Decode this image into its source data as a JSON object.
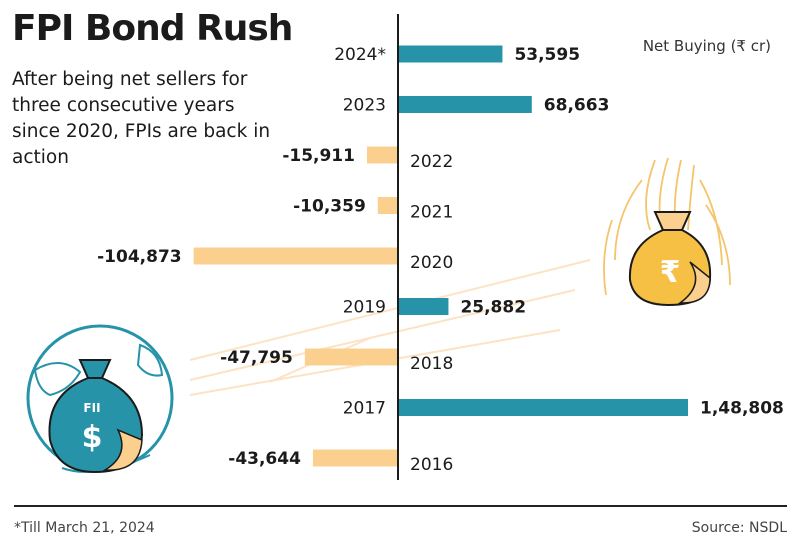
{
  "header": {
    "title": "FPI Bond Rush",
    "subtitle": "After being net sellers for three consecutive years since 2020, FPIs are back in action",
    "units": "Net Buying (₹ cr)"
  },
  "footer": {
    "footnote": "*Till March 21, 2024",
    "source": "Source: NSDL"
  },
  "colors": {
    "positive": "#2793a8",
    "negative": "#fbd08f",
    "axis": "#1b1b1b"
  },
  "illustration": {
    "money_bag_label": "FII",
    "money_bag_symbol": "$",
    "rupee_bag_symbol": "₹"
  },
  "chart_data": {
    "type": "bar",
    "orientation": "horizontal",
    "categories": [
      "2024*",
      "2023",
      "2022",
      "2021",
      "2020",
      "2019",
      "2018",
      "2017",
      "2016"
    ],
    "values": [
      53595,
      68663,
      -15911,
      -10359,
      -104873,
      25882,
      -47795,
      148808,
      -43644
    ],
    "value_labels": [
      "53,595",
      "68,663",
      "-15,911",
      "-10,359",
      "-104,873",
      "25,882",
      "-47,795",
      "1,48,808",
      "-43,644"
    ],
    "title": "FPI Bond Rush",
    "xlabel": "Net Buying (₹ cr)",
    "ylabel": "",
    "xlim": [
      -110000,
      155000
    ],
    "grid": false
  }
}
